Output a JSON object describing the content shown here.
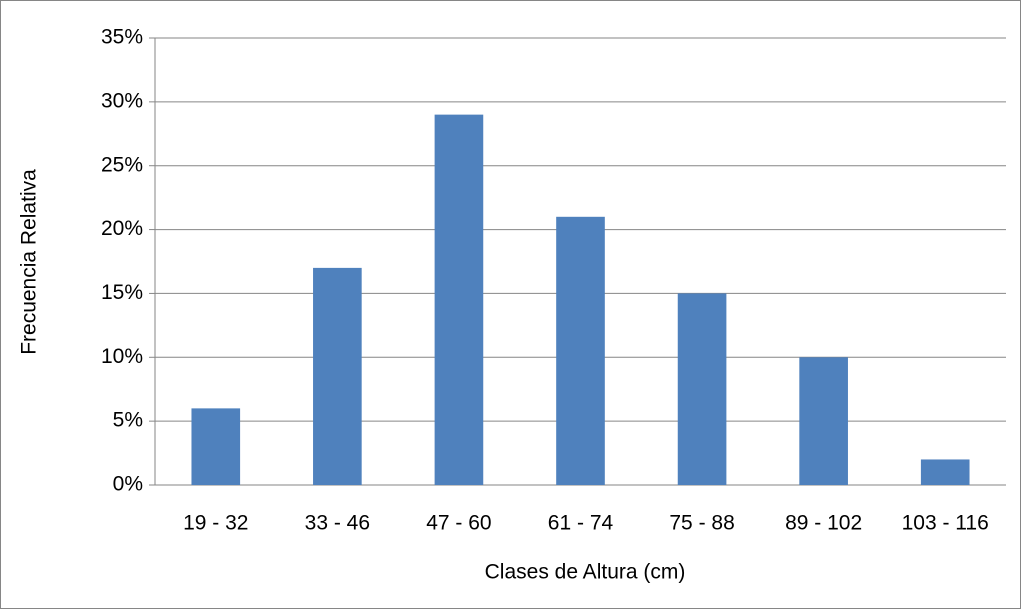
{
  "chart_data": {
    "type": "bar",
    "x_label": "Clases de Altura (cm)",
    "y_label": "Frecuencia Relativa",
    "categories": [
      "19 - 32",
      "33 - 46",
      "47 - 60",
      "61 - 74",
      "75 - 88",
      "89 - 102",
      "103 - 116"
    ],
    "values": [
      6,
      17,
      29,
      21,
      15,
      10,
      2
    ],
    "color": "#4f81bd",
    "ylim": [
      0,
      35
    ],
    "yticks": [
      {
        "value": 0,
        "label": "0%"
      },
      {
        "value": 5,
        "label": "5%"
      },
      {
        "value": 10,
        "label": "10%"
      },
      {
        "value": 15,
        "label": "15%"
      },
      {
        "value": 20,
        "label": "20%"
      },
      {
        "value": 25,
        "label": "25%"
      },
      {
        "value": 30,
        "label": "30%"
      },
      {
        "value": 35,
        "label": "35%"
      }
    ],
    "grid": true
  }
}
